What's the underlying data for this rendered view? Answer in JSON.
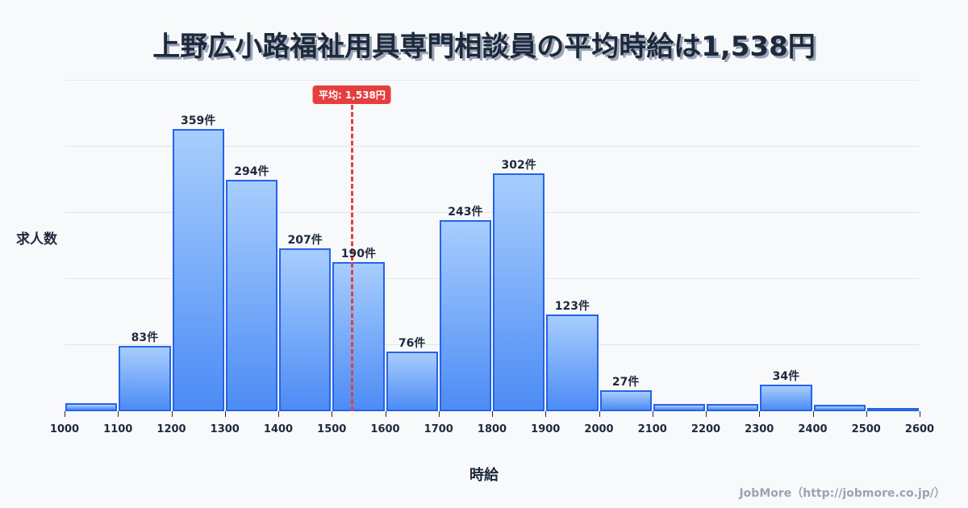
{
  "title": "上野広小路福祉用具専門相談員の平均時給は1,538円",
  "mean_label": "平均: 1,538円",
  "ylabel": "求人数",
  "xlabel": "時給",
  "credit": "JobMore（http://jobmore.co.jp/）",
  "colors": {
    "bar_top": "#a7cdfd",
    "bar_bottom": "#4d8cf5",
    "bar_border": "#2563eb",
    "mean_line": "#e53e3e",
    "background": "#f8f9fb",
    "text": "#1e293b"
  },
  "chart_data": {
    "type": "bar",
    "title": "上野広小路福祉用具専門相談員の平均時給は1,538円",
    "xlabel": "時給",
    "ylabel": "求人数",
    "bins": [
      1000,
      1100,
      1200,
      1300,
      1400,
      1500,
      1600,
      1700,
      1800,
      1900,
      2000,
      2100,
      2200,
      2300,
      2400,
      2500,
      2600
    ],
    "categories": [
      "1000-1100",
      "1100-1200",
      "1200-1300",
      "1300-1400",
      "1400-1500",
      "1500-1600",
      "1600-1700",
      "1700-1800",
      "1800-1900",
      "1900-2000",
      "2000-2100",
      "2100-2200",
      "2200-2300",
      "2300-2400",
      "2400-2500",
      "2500-2600"
    ],
    "values": [
      10,
      83,
      359,
      294,
      207,
      190,
      76,
      243,
      302,
      123,
      27,
      9,
      9,
      34,
      8,
      1
    ],
    "labels": [
      "",
      "83件",
      "359件",
      "294件",
      "207件",
      "190件",
      "76件",
      "243件",
      "302件",
      "123件",
      "27件",
      "",
      "",
      "34件",
      "",
      ""
    ],
    "x_ticks": [
      "1000",
      "1100",
      "1200",
      "1300",
      "1400",
      "1500",
      "1600",
      "1700",
      "1800",
      "1900",
      "2000",
      "2100",
      "2200",
      "2300",
      "2400",
      "2500",
      "2600"
    ],
    "xlim": [
      1000,
      2600
    ],
    "ylim": [
      0,
      420
    ],
    "grid": true,
    "grid_step": 84,
    "mean": 1538,
    "mean_annotation": "平均: 1,538円"
  }
}
